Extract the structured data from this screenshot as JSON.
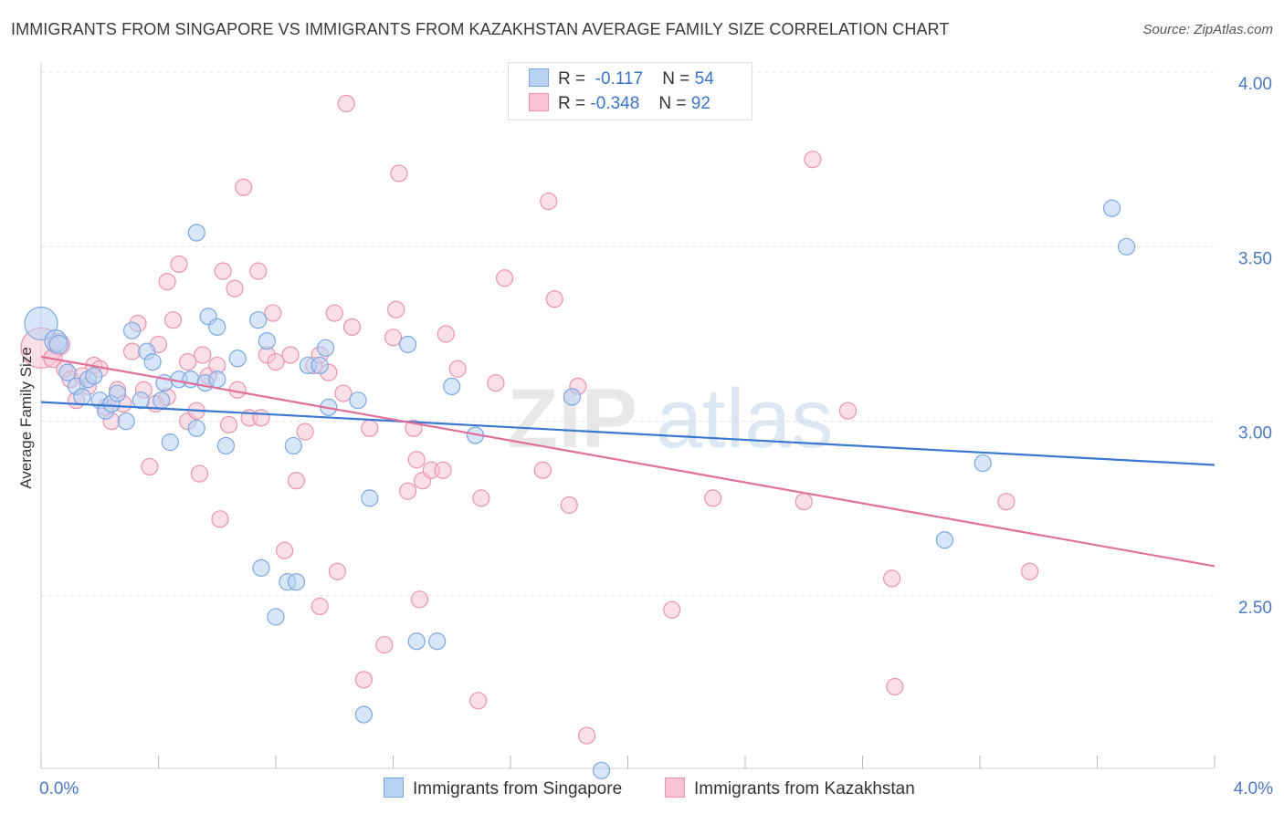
{
  "header": {
    "title": "IMMIGRANTS FROM SINGAPORE VS IMMIGRANTS FROM KAZAKHSTAN AVERAGE FAMILY SIZE CORRELATION CHART",
    "source": "Source: ZipAtlas.com"
  },
  "watermark": {
    "zip": "ZIP",
    "atlas": "atlas"
  },
  "legend": {
    "rows": [
      {
        "r_label": "R =",
        "r_value": "-0.117",
        "n_label": "N =",
        "n_value": "54"
      },
      {
        "r_label": "R =",
        "r_value": "-0.348",
        "n_label": "N =",
        "n_value": "92"
      }
    ]
  },
  "colors": {
    "singapore_fill": "#b7d2f3",
    "singapore_stroke": "#7aa7e3",
    "singapore_line": "#3a78cf",
    "kazakhstan_fill": "#f8c4d3",
    "kazakhstan_stroke": "#e993ae",
    "kazakhstan_line": "#e0709a",
    "tick_text": "#4a78c2"
  },
  "chart_data": {
    "type": "scatter",
    "title": "IMMIGRANTS FROM SINGAPORE VS IMMIGRANTS FROM KAZAKHSTAN AVERAGE FAMILY SIZE CORRELATION CHART",
    "xlabel": "",
    "ylabel": "Average Family Size",
    "xlim": [
      0.0,
      4.0
    ],
    "ylim": [
      2.0,
      4.05
    ],
    "x_tick_labels": [
      {
        "value": 0.0,
        "label": "0.0%"
      },
      {
        "value": 4.0,
        "label": "4.0%"
      }
    ],
    "y_ticks": [
      {
        "value": 2.5,
        "label": "2.50"
      },
      {
        "value": 3.0,
        "label": "3.00"
      },
      {
        "value": 3.5,
        "label": "3.50"
      },
      {
        "value": 4.0,
        "label": "4.00"
      }
    ],
    "grid": true,
    "legend_position": "top-center",
    "series": [
      {
        "name": "Immigrants from Singapore",
        "r": -0.117,
        "n": 54,
        "trend": {
          "x": [
            0.0,
            4.0
          ],
          "y": [
            3.055,
            2.875
          ]
        },
        "points": [
          [
            0.0,
            3.28,
            18
          ],
          [
            0.05,
            3.23,
            12
          ],
          [
            0.06,
            3.22,
            10
          ],
          [
            0.09,
            3.14,
            9
          ],
          [
            0.12,
            3.1,
            9
          ],
          [
            0.14,
            3.07,
            9
          ],
          [
            0.16,
            3.12,
            9
          ],
          [
            0.18,
            3.13,
            9
          ],
          [
            0.2,
            3.06,
            9
          ],
          [
            0.22,
            3.03,
            9
          ],
          [
            0.24,
            3.05,
            9
          ],
          [
            0.26,
            3.08,
            9
          ],
          [
            0.29,
            3.0,
            9
          ],
          [
            0.31,
            3.26,
            9
          ],
          [
            0.34,
            3.06,
            9
          ],
          [
            0.36,
            3.2,
            9
          ],
          [
            0.38,
            3.17,
            9
          ],
          [
            0.42,
            3.11,
            9
          ],
          [
            0.41,
            3.06,
            9
          ],
          [
            0.44,
            2.94,
            9
          ],
          [
            0.47,
            3.12,
            9
          ],
          [
            0.51,
            3.12,
            9
          ],
          [
            0.53,
            2.98,
            9
          ],
          [
            0.53,
            3.54,
            9
          ],
          [
            0.56,
            3.11,
            9
          ],
          [
            0.57,
            3.3,
            9
          ],
          [
            0.6,
            3.12,
            9
          ],
          [
            0.6,
            3.27,
            9
          ],
          [
            0.63,
            2.93,
            9
          ],
          [
            0.67,
            3.18,
            9
          ],
          [
            0.74,
            3.29,
            9
          ],
          [
            0.75,
            2.58,
            9
          ],
          [
            0.77,
            3.23,
            9
          ],
          [
            0.8,
            2.44,
            9
          ],
          [
            0.84,
            2.54,
            9
          ],
          [
            0.87,
            2.54,
            9
          ],
          [
            0.86,
            2.93,
            9
          ],
          [
            0.91,
            3.16,
            9
          ],
          [
            0.95,
            3.16,
            9
          ],
          [
            0.97,
            3.21,
            9
          ],
          [
            0.98,
            3.04,
            9
          ],
          [
            1.08,
            3.06,
            9
          ],
          [
            1.12,
            2.78,
            9
          ],
          [
            1.1,
            2.16,
            9
          ],
          [
            1.25,
            3.22,
            9
          ],
          [
            1.28,
            2.37,
            9
          ],
          [
            1.35,
            2.37,
            9
          ],
          [
            1.4,
            3.1,
            9
          ],
          [
            1.48,
            2.96,
            9
          ],
          [
            1.81,
            3.07,
            9
          ],
          [
            1.91,
            2.0,
            9
          ],
          [
            3.21,
            2.88,
            9
          ],
          [
            3.08,
            2.66,
            9
          ],
          [
            3.65,
            3.61,
            9
          ],
          [
            3.7,
            3.5,
            9
          ]
        ]
      },
      {
        "name": "Immigrants from Kazakhstan",
        "r": -0.348,
        "n": 92,
        "trend": {
          "x": [
            0.0,
            4.0
          ],
          "y": [
            3.185,
            2.585
          ]
        },
        "points": [
          [
            0.0,
            3.21,
            22
          ],
          [
            0.06,
            3.22,
            12
          ],
          [
            0.04,
            3.18,
            10
          ],
          [
            0.08,
            3.15,
            9
          ],
          [
            0.1,
            3.12,
            9
          ],
          [
            0.12,
            3.06,
            9
          ],
          [
            0.14,
            3.13,
            9
          ],
          [
            0.16,
            3.1,
            9
          ],
          [
            0.18,
            3.16,
            9
          ],
          [
            0.2,
            3.15,
            9
          ],
          [
            0.22,
            3.04,
            9
          ],
          [
            0.24,
            3.0,
            9
          ],
          [
            0.26,
            3.09,
            9
          ],
          [
            0.28,
            3.05,
            9
          ],
          [
            0.31,
            3.2,
            9
          ],
          [
            0.33,
            3.28,
            9
          ],
          [
            0.35,
            3.09,
            9
          ],
          [
            0.37,
            2.87,
            9
          ],
          [
            0.39,
            3.05,
            9
          ],
          [
            0.4,
            3.22,
            9
          ],
          [
            0.43,
            3.07,
            9
          ],
          [
            0.43,
            3.4,
            9
          ],
          [
            0.45,
            3.29,
            9
          ],
          [
            0.47,
            3.45,
            9
          ],
          [
            0.5,
            3.0,
            9
          ],
          [
            0.5,
            3.17,
            9
          ],
          [
            0.53,
            3.03,
            9
          ],
          [
            0.54,
            2.85,
            9
          ],
          [
            0.55,
            3.19,
            9
          ],
          [
            0.57,
            3.13,
            9
          ],
          [
            0.6,
            3.16,
            9
          ],
          [
            0.61,
            2.72,
            9
          ],
          [
            0.62,
            3.43,
            9
          ],
          [
            0.64,
            2.99,
            9
          ],
          [
            0.66,
            3.38,
            9
          ],
          [
            0.67,
            3.09,
            9
          ],
          [
            0.69,
            3.67,
            9
          ],
          [
            0.71,
            3.01,
            9
          ],
          [
            0.74,
            3.43,
            9
          ],
          [
            0.75,
            3.01,
            9
          ],
          [
            0.77,
            3.19,
            9
          ],
          [
            0.79,
            3.31,
            9
          ],
          [
            0.8,
            3.17,
            9
          ],
          [
            0.83,
            2.63,
            9
          ],
          [
            0.85,
            3.19,
            9
          ],
          [
            0.87,
            2.83,
            9
          ],
          [
            0.9,
            2.97,
            9
          ],
          [
            0.93,
            3.16,
            9
          ],
          [
            0.95,
            2.47,
            9
          ],
          [
            0.95,
            3.19,
            9
          ],
          [
            0.98,
            3.14,
            9
          ],
          [
            1.0,
            3.31,
            9
          ],
          [
            1.01,
            2.57,
            9
          ],
          [
            1.03,
            3.08,
            9
          ],
          [
            1.04,
            3.91,
            9
          ],
          [
            1.06,
            3.27,
            9
          ],
          [
            1.1,
            2.26,
            9
          ],
          [
            1.12,
            2.98,
            9
          ],
          [
            1.17,
            2.36,
            9
          ],
          [
            1.2,
            3.24,
            9
          ],
          [
            1.21,
            3.32,
            9
          ],
          [
            1.22,
            3.71,
            9
          ],
          [
            1.25,
            2.8,
            9
          ],
          [
            1.27,
            2.98,
            9
          ],
          [
            1.28,
            2.89,
            9
          ],
          [
            1.29,
            2.49,
            9
          ],
          [
            1.3,
            2.83,
            9
          ],
          [
            1.33,
            2.86,
            9
          ],
          [
            1.37,
            2.86,
            9
          ],
          [
            1.38,
            3.25,
            9
          ],
          [
            1.42,
            3.15,
            9
          ],
          [
            1.49,
            2.2,
            9
          ],
          [
            1.5,
            2.78,
            9
          ],
          [
            1.55,
            3.11,
            9
          ],
          [
            1.58,
            3.41,
            9
          ],
          [
            1.71,
            2.86,
            9
          ],
          [
            1.73,
            3.63,
            9
          ],
          [
            1.75,
            3.35,
            9
          ],
          [
            1.8,
            2.76,
            9
          ],
          [
            1.83,
            3.1,
            9
          ],
          [
            1.86,
            2.1,
            9
          ],
          [
            2.15,
            2.46,
            9
          ],
          [
            2.29,
            2.78,
            9
          ],
          [
            2.6,
            2.77,
            9
          ],
          [
            2.63,
            3.75,
            9
          ],
          [
            2.75,
            3.03,
            9
          ],
          [
            2.9,
            2.55,
            9
          ],
          [
            2.91,
            2.24,
            9
          ],
          [
            3.29,
            2.77,
            9
          ],
          [
            3.37,
            2.57,
            9
          ]
        ]
      }
    ]
  }
}
